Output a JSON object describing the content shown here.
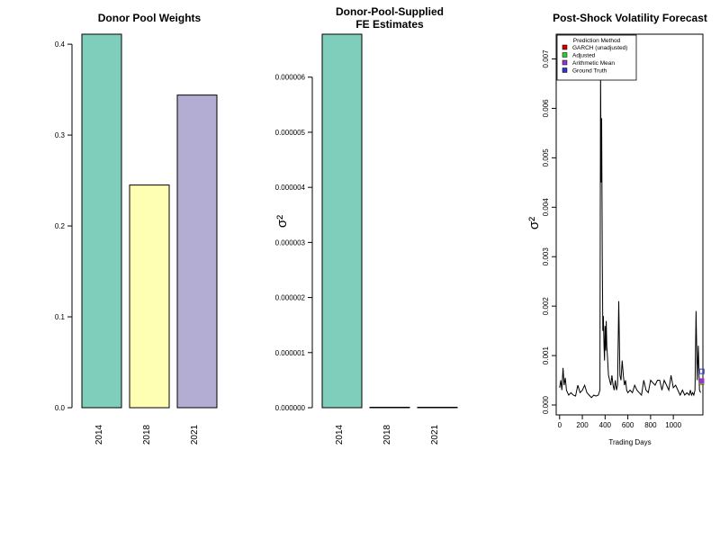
{
  "chart_data": [
    {
      "type": "bar",
      "title": "Donor Pool Weights",
      "xlabel": "",
      "ylabel": "",
      "categories": [
        "2014",
        "2018",
        "2021"
      ],
      "values": [
        0.411,
        0.245,
        0.344
      ],
      "colors": [
        "#7FCDBB",
        "#FFFFB3",
        "#B3ADD3"
      ],
      "ylim": [
        0,
        0.411
      ],
      "yticks": [
        0.0,
        0.1,
        0.2,
        0.3,
        0.4
      ],
      "ytick_labels": [
        "0.0",
        "0.1",
        "0.2",
        "0.3",
        "0.4"
      ]
    },
    {
      "type": "bar",
      "title_lines": [
        "Donor-Pool-Supplied",
        "FE Estimates"
      ],
      "xlabel": "",
      "ylabel": "σ²",
      "categories": [
        "2014",
        "2018",
        "2021"
      ],
      "values": [
        6.78e-06,
        0.0,
        0.0
      ],
      "colors": [
        "#7FCDBB",
        "#FFFFB3",
        "#B3ADD3"
      ],
      "ylim": [
        0,
        6.78e-06
      ],
      "yticks": [
        0,
        1e-06,
        2e-06,
        3e-06,
        4e-06,
        5e-06,
        6e-06
      ],
      "ytick_labels": [
        "0.000000",
        "0.000001",
        "0.000002",
        "0.000003",
        "0.000004",
        "0.000005",
        "0.000006"
      ]
    },
    {
      "type": "line",
      "title": "Post-Shock Volatility Forecast",
      "xlabel": "Trading Days",
      "ylabel": "σ²",
      "xlim": [
        -30,
        1260
      ],
      "ylim": [
        -0.0002,
        0.0075
      ],
      "xticks": [
        0,
        200,
        400,
        600,
        800,
        1000
      ],
      "xtick_labels": [
        "0",
        "200",
        "400",
        "600",
        "800",
        "1000"
      ],
      "yticks": [
        0,
        0.001,
        0.002,
        0.003,
        0.004,
        0.005,
        0.006,
        0.007
      ],
      "ytick_labels": [
        "0.000",
        "0.001",
        "0.002",
        "0.003",
        "0.004",
        "0.005",
        "0.006",
        "0.007"
      ],
      "series_color": "#000000",
      "x": [
        0,
        10,
        20,
        30,
        40,
        50,
        60,
        70,
        80,
        100,
        120,
        140,
        160,
        180,
        200,
        220,
        240,
        260,
        280,
        300,
        320,
        340,
        355,
        360,
        365,
        370,
        375,
        380,
        385,
        390,
        395,
        400,
        405,
        410,
        415,
        420,
        425,
        430,
        440,
        450,
        460,
        470,
        480,
        490,
        500,
        510,
        520,
        530,
        540,
        550,
        560,
        570,
        580,
        590,
        600,
        620,
        640,
        660,
        680,
        700,
        720,
        740,
        760,
        780,
        800,
        820,
        840,
        860,
        880,
        900,
        920,
        940,
        960,
        980,
        1000,
        1020,
        1040,
        1060,
        1080,
        1100,
        1120,
        1140,
        1150,
        1160,
        1170,
        1180,
        1190,
        1200,
        1210,
        1220,
        1230,
        1240
      ],
      "y": [
        0.00035,
        0.0005,
        0.0003,
        0.00075,
        0.0004,
        0.00055,
        0.0003,
        0.00025,
        0.0002,
        0.00025,
        0.0002,
        0.00018,
        0.0004,
        0.00025,
        0.0003,
        0.0004,
        0.00025,
        0.0002,
        0.00015,
        0.0002,
        0.00018,
        0.0002,
        0.0003,
        0.0068,
        0.0045,
        0.0058,
        0.003,
        0.0015,
        0.0018,
        0.0012,
        0.0009,
        0.0016,
        0.0011,
        0.0017,
        0.0012,
        0.001,
        0.0008,
        0.0006,
        0.0005,
        0.0004,
        0.0006,
        0.0004,
        0.0003,
        0.0005,
        0.0003,
        0.0004,
        0.0021,
        0.0006,
        0.0005,
        0.0009,
        0.0006,
        0.0004,
        0.0005,
        0.0003,
        0.00025,
        0.0003,
        0.00025,
        0.0004,
        0.0003,
        0.00025,
        0.0002,
        0.0005,
        0.0003,
        0.00025,
        0.0005,
        0.00045,
        0.0004,
        0.0005,
        0.0005,
        0.0003,
        0.0005,
        0.0004,
        0.0003,
        0.0006,
        0.00035,
        0.0004,
        0.0003,
        0.0002,
        0.0003,
        0.0002,
        0.00025,
        0.0002,
        0.0003,
        0.0002,
        0.00025,
        0.0002,
        0.0003,
        0.0019,
        0.0005,
        0.0012,
        0.0003,
        0.00025
      ],
      "markers": [
        {
          "label": "GARCH (unadjusted)",
          "x": 1250,
          "y": 0.00046,
          "color": "#CC0000",
          "shape": "filled-square"
        },
        {
          "label": "Adjusted",
          "x": 1250,
          "y": 0.00047,
          "color": "#33CC33",
          "shape": "filled-square"
        },
        {
          "label": "Arithmetic Mean",
          "x": 1250,
          "y": 0.00049,
          "color": "#9933CC",
          "shape": "filled-square"
        },
        {
          "label": "Ground Truth",
          "x": 1250,
          "y": 0.00068,
          "color": "#3333CC",
          "shape": "open-square"
        }
      ],
      "legend": {
        "title": "Prediction Method",
        "placement": "top-left",
        "entries": [
          "GARCH (unadjusted)",
          "Adjusted",
          "Arithmetic Mean",
          "Ground Truth"
        ],
        "colors": [
          "#CC0000",
          "#33CC33",
          "#9933CC",
          "#3333CC"
        ]
      }
    }
  ]
}
